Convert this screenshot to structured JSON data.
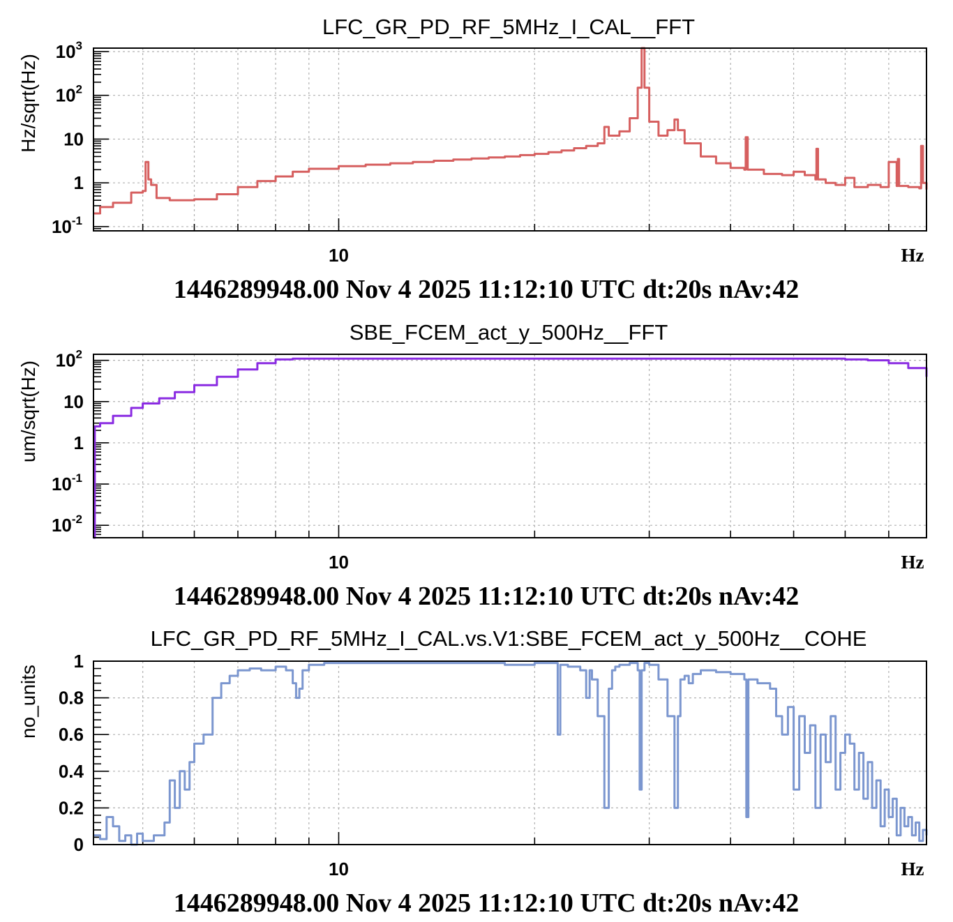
{
  "chart_data": [
    {
      "type": "line",
      "title": "LFC_GR_PD_RF_5MHz_I_CAL__FFT",
      "ylabel": "Hz/sqrt(Hz)",
      "xlabel": "Hz",
      "footer": "1446289948.00 Nov 4 2025 11:12:10 UTC dt:20s nAv:42",
      "x_scale": "log",
      "y_scale": "log",
      "xlim": [
        4.2,
        80
      ],
      "ylim": [
        0.08,
        1200
      ],
      "x_tick_labels": [
        {
          "value": 10,
          "label": "10"
        }
      ],
      "y_tick_labels": [
        {
          "value": 0.1,
          "base": "10",
          "exp": "-1"
        },
        {
          "value": 1,
          "base": "1",
          "exp": ""
        },
        {
          "value": 10,
          "base": "10",
          "exp": ""
        },
        {
          "value": 100,
          "base": "10",
          "exp": "2"
        },
        {
          "value": 1000,
          "base": "10",
          "exp": "3"
        }
      ],
      "grid": true,
      "color": "#d65f5f",
      "series": [
        {
          "x": [
            4.2,
            4.3,
            4.5,
            4.8,
            5.0,
            5.05,
            5.1,
            5.15,
            5.25,
            5.5,
            6.0,
            6.5,
            7.0,
            7.5,
            8.0,
            8.5,
            9.0,
            10.0,
            11.0,
            12.0,
            13.0,
            14.0,
            15.0,
            16.0,
            17.0,
            18.0,
            19.0,
            20.0,
            21.0,
            22.0,
            23.0,
            24.0,
            25.0,
            25.6,
            26.0,
            27.0,
            28.0,
            28.8,
            29.2,
            29.5,
            30.0,
            31.0,
            32.0,
            32.8,
            33.2,
            34.0,
            36.0,
            38.0,
            40.0,
            42.0,
            42.2,
            42.5,
            45.0,
            48.0,
            50.0,
            52.0,
            54.0,
            54.2,
            54.5,
            56.0,
            58.0,
            60.0,
            62.0,
            65.0,
            68.0,
            70.0,
            72.0,
            72.3,
            72.6,
            75.0,
            78.0,
            78.5,
            79.0,
            80.0
          ],
          "y": [
            0.2,
            0.28,
            0.35,
            0.6,
            0.65,
            3.0,
            1.2,
            0.9,
            0.45,
            0.4,
            0.42,
            0.55,
            0.8,
            1.1,
            1.4,
            1.8,
            2.1,
            2.4,
            2.6,
            2.8,
            3.0,
            3.2,
            3.4,
            3.6,
            3.8,
            4.0,
            4.3,
            4.6,
            5.0,
            5.5,
            6.2,
            7.0,
            8.0,
            19.0,
            12.0,
            15.0,
            30.0,
            150.0,
            1200.0,
            150.0,
            25.0,
            12.0,
            16.0,
            28.0,
            16.0,
            8.0,
            4.0,
            2.8,
            2.2,
            2.0,
            11.0,
            2.0,
            1.6,
            1.5,
            1.8,
            1.5,
            1.2,
            6.0,
            1.2,
            1.0,
            0.9,
            1.3,
            0.8,
            0.9,
            0.8,
            3.0,
            0.85,
            3.5,
            0.85,
            0.8,
            0.75,
            7.0,
            1.0,
            0.7
          ]
        }
      ]
    },
    {
      "type": "line",
      "title": "SBE_FCEM_act_y_500Hz__FFT",
      "ylabel": "um/sqrt(Hz)",
      "xlabel": "Hz",
      "footer": "1446289948.00 Nov 4 2025 11:12:10 UTC dt:20s nAv:42",
      "x_scale": "log",
      "y_scale": "log",
      "xlim": [
        4.2,
        80
      ],
      "ylim": [
        0.005,
        140
      ],
      "x_tick_labels": [
        {
          "value": 10,
          "label": "10"
        }
      ],
      "y_tick_labels": [
        {
          "value": 0.01,
          "base": "10",
          "exp": "-2"
        },
        {
          "value": 0.1,
          "base": "10",
          "exp": "-1"
        },
        {
          "value": 1,
          "base": "1",
          "exp": ""
        },
        {
          "value": 10,
          "base": "10",
          "exp": ""
        },
        {
          "value": 100,
          "base": "10",
          "exp": "2"
        }
      ],
      "grid": true,
      "color": "#8a2be2",
      "series": [
        {
          "x": [
            4.2,
            4.22,
            4.3,
            4.5,
            4.8,
            5.0,
            5.3,
            5.6,
            6.0,
            6.5,
            7.0,
            7.5,
            8.0,
            8.5,
            9.0,
            10.0,
            12.0,
            15.0,
            20.0,
            25.0,
            30.0,
            40.0,
            50.0,
            60.0,
            65.0,
            70.0,
            75.0,
            80.0
          ],
          "y": [
            0.005,
            2.5,
            3.0,
            4.5,
            7.0,
            9.0,
            12.0,
            17.0,
            25.0,
            40.0,
            60.0,
            85.0,
            105.0,
            110.0,
            110.0,
            110.0,
            110.0,
            110.0,
            110.0,
            110.0,
            110.0,
            110.0,
            110.0,
            105.0,
            100.0,
            85.0,
            65.0,
            40.0
          ]
        }
      ]
    },
    {
      "type": "line",
      "title": "LFC_GR_PD_RF_5MHz_I_CAL.vs.V1:SBE_FCEM_act_y_500Hz__COHE",
      "ylabel": "no_units",
      "xlabel": "Hz",
      "footer": "1446289948.00 Nov 4 2025 11:12:10 UTC dt:20s nAv:42",
      "x_scale": "log",
      "y_scale": "linear",
      "xlim": [
        4.2,
        80
      ],
      "ylim": [
        0,
        1
      ],
      "x_tick_labels": [
        {
          "value": 10,
          "label": "10"
        }
      ],
      "y_tick_labels": [
        {
          "value": 0,
          "base": "0",
          "exp": ""
        },
        {
          "value": 0.2,
          "base": "0.2",
          "exp": ""
        },
        {
          "value": 0.4,
          "base": "0.4",
          "exp": ""
        },
        {
          "value": 0.6,
          "base": "0.6",
          "exp": ""
        },
        {
          "value": 0.8,
          "base": "0.8",
          "exp": ""
        },
        {
          "value": 1,
          "base": "1",
          "exp": ""
        }
      ],
      "grid": true,
      "color": "#7b96cf",
      "series": [
        {
          "x": [
            4.2,
            4.3,
            4.4,
            4.5,
            4.6,
            4.7,
            4.8,
            4.9,
            5.0,
            5.2,
            5.4,
            5.5,
            5.6,
            5.7,
            5.8,
            5.9,
            6.0,
            6.2,
            6.4,
            6.6,
            6.8,
            7.0,
            7.3,
            7.6,
            8.0,
            8.3,
            8.5,
            8.6,
            8.7,
            8.8,
            9.0,
            9.5,
            10.0,
            11.0,
            12.0,
            14.0,
            16.0,
            18.0,
            20.0,
            21.0,
            21.5,
            21.7,
            21.9,
            22.5,
            23.5,
            24.0,
            24.3,
            24.5,
            25.0,
            25.6,
            26.0,
            26.3,
            26.6,
            27.0,
            28.0,
            28.8,
            29.0,
            29.2,
            29.5,
            30.0,
            31.0,
            32.0,
            32.8,
            33.2,
            33.5,
            34.0,
            34.5,
            35.0,
            36.0,
            38.0,
            40.0,
            42.0,
            42.3,
            42.6,
            44.0,
            46.0,
            47.0,
            48.0,
            49.0,
            50.0,
            51.0,
            52.0,
            53.0,
            54.0,
            55.0,
            56.0,
            57.0,
            58.0,
            59.0,
            60.0,
            61.0,
            62.0,
            63.0,
            64.0,
            65.0,
            66.0,
            67.0,
            68.0,
            69.0,
            70.0,
            71.0,
            72.0,
            73.0,
            74.0,
            75.0,
            76.0,
            77.0,
            78.0,
            79.0,
            80.0
          ],
          "y": [
            0.05,
            0.03,
            0.15,
            0.1,
            0.02,
            0.05,
            0.0,
            0.06,
            0.02,
            0.05,
            0.12,
            0.35,
            0.2,
            0.4,
            0.3,
            0.45,
            0.55,
            0.6,
            0.8,
            0.88,
            0.92,
            0.95,
            0.96,
            0.95,
            0.97,
            0.95,
            0.88,
            0.8,
            0.85,
            0.95,
            0.98,
            0.99,
            0.99,
            0.99,
            0.99,
            0.99,
            0.99,
            0.98,
            0.99,
            0.99,
            0.99,
            0.6,
            0.98,
            0.97,
            0.95,
            0.8,
            0.95,
            0.9,
            0.7,
            0.2,
            0.85,
            0.95,
            0.97,
            0.98,
            0.99,
            0.95,
            0.3,
            0.95,
            0.99,
            0.98,
            0.9,
            0.7,
            0.2,
            0.7,
            0.9,
            0.92,
            0.88,
            0.93,
            0.95,
            0.94,
            0.93,
            0.9,
            0.15,
            0.9,
            0.88,
            0.85,
            0.7,
            0.6,
            0.75,
            0.3,
            0.7,
            0.5,
            0.65,
            0.2,
            0.6,
            0.45,
            0.7,
            0.3,
            0.5,
            0.6,
            0.55,
            0.3,
            0.5,
            0.25,
            0.45,
            0.2,
            0.35,
            0.1,
            0.3,
            0.15,
            0.25,
            0.05,
            0.2,
            0.1,
            0.15,
            0.05,
            0.12,
            0.02,
            0.08,
            0.05
          ]
        }
      ]
    }
  ]
}
